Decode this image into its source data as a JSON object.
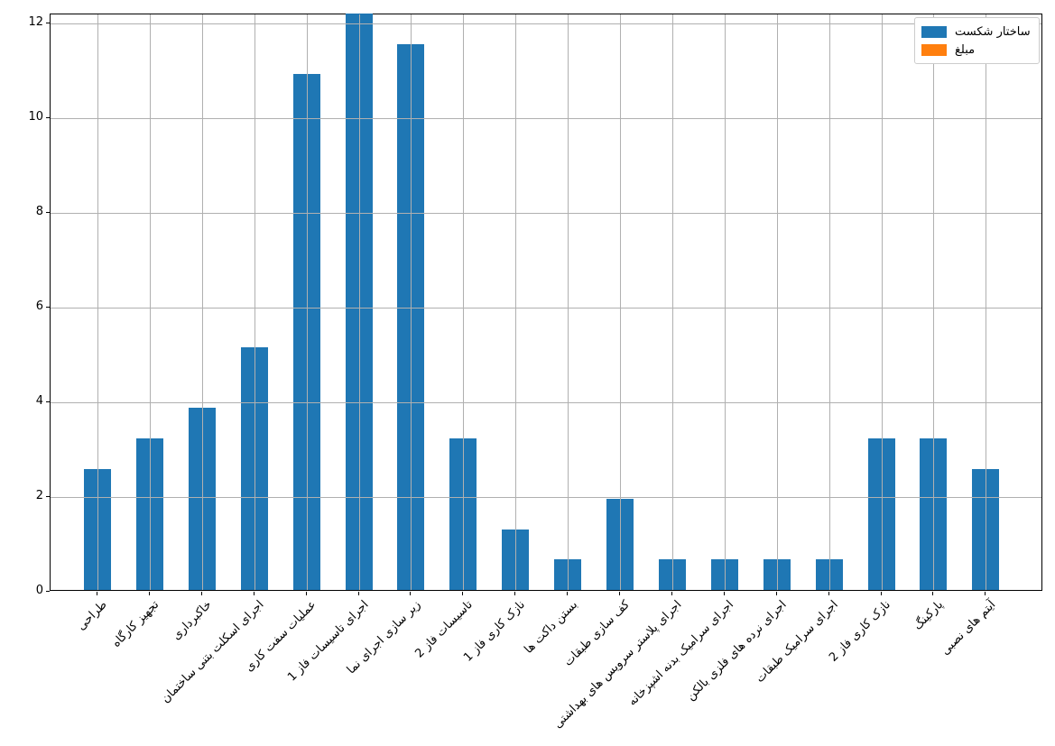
{
  "figure": {
    "background": "#ffffff",
    "title": ""
  },
  "colors": {
    "bar_primary": "#1f77b4",
    "bar_secondary": "#ff7f0e",
    "grid": "#b0b0b0",
    "spine": "#000000",
    "legend_border": "#cccccc",
    "text": "#000000"
  },
  "legend": {
    "position": "upper right",
    "items": [
      {
        "label": "ساختار شکست",
        "color": "#1f77b4"
      },
      {
        "label": "مبلغ",
        "color": "#ff7f0e"
      }
    ]
  },
  "chart_data": {
    "type": "bar",
    "title": "",
    "xlabel": "",
    "ylabel": "",
    "categories": [
      "طراحی",
      "تجهیز کارگاه",
      "خاکبرداری",
      "اجرای اسکلت بتنی ساختمان",
      "عملیات سفت کاری",
      "اجرای تاسیسات فاز 1",
      "زیر سازی اجرای نما",
      "تاسیسات فاز 2",
      "نازک کاری فاز 1",
      "بستن داکت ها",
      "کف سازی طبقات",
      "اجرای پلاستر سرویس های بهداشتی",
      "اجرای سرامیک بدنه اشپزخانه",
      "اجرای نرده های فلزی بالکن",
      "اجرای سرامیک طبقات",
      "نازک کاری فاز 2",
      "پارکینگ",
      "آیتم های نصبی"
    ],
    "series": [
      {
        "name": "ساختار شکست",
        "color": "#1f77b4",
        "values": [
          2.56,
          3.21,
          3.85,
          5.13,
          10.9,
          12.18,
          11.54,
          3.21,
          1.28,
          0.64,
          1.92,
          0.64,
          0.64,
          0.64,
          0.64,
          3.21,
          3.21,
          2.56
        ]
      },
      {
        "name": "مبلغ",
        "color": "#ff7f0e",
        "values": [
          0,
          0,
          0,
          0,
          0,
          0,
          0,
          0,
          0,
          0,
          0,
          0,
          0,
          0,
          0,
          0,
          0,
          0
        ],
        "visible": false
      }
    ],
    "yticks": [
      0,
      2,
      4,
      6,
      8,
      10,
      12
    ],
    "ylim": [
      0,
      12.2
    ],
    "grid": true,
    "legend_position": "upper right",
    "x_tick_label_rotation": 45
  }
}
